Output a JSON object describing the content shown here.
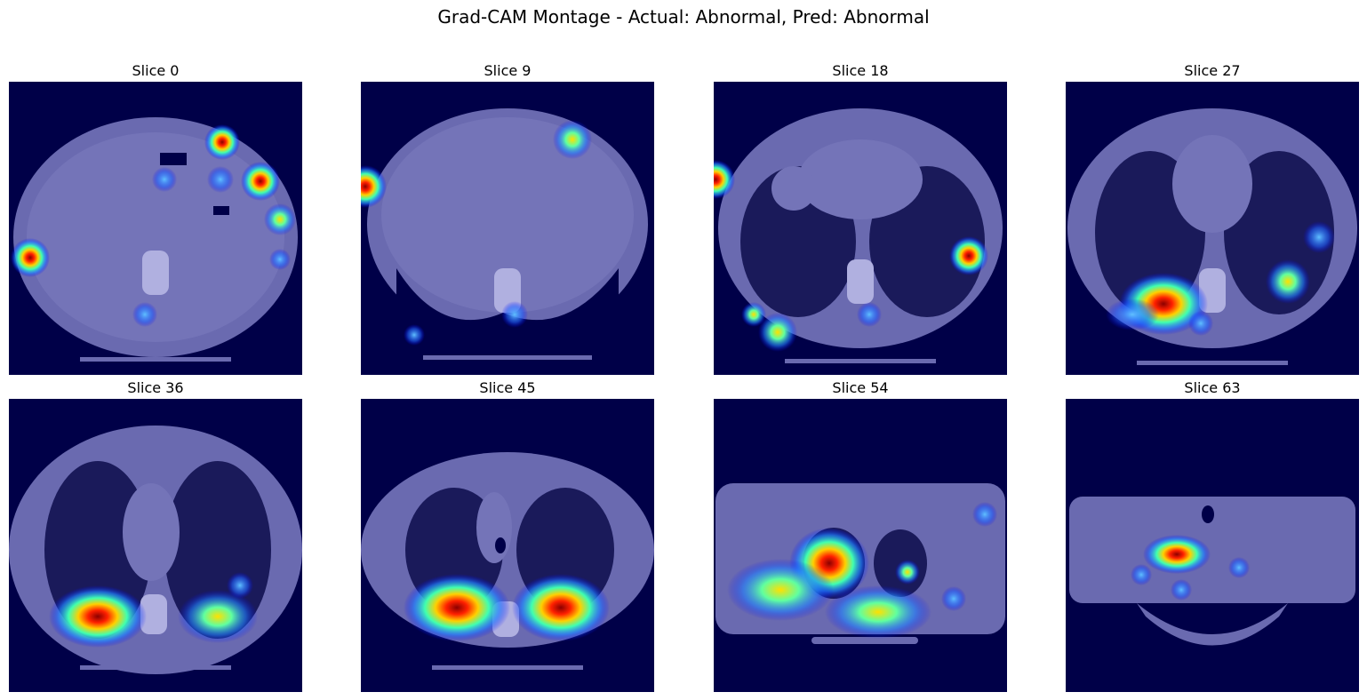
{
  "figure": {
    "title": "Grad-CAM Montage - Actual: Abnormal, Pred: Abnormal"
  },
  "panels": [
    {
      "title": "Slice 0"
    },
    {
      "title": "Slice 9"
    },
    {
      "title": "Slice 18"
    },
    {
      "title": "Slice 27"
    },
    {
      "title": "Slice 36"
    },
    {
      "title": "Slice 45"
    },
    {
      "title": "Slice 54"
    },
    {
      "title": "Slice 63"
    }
  ]
}
